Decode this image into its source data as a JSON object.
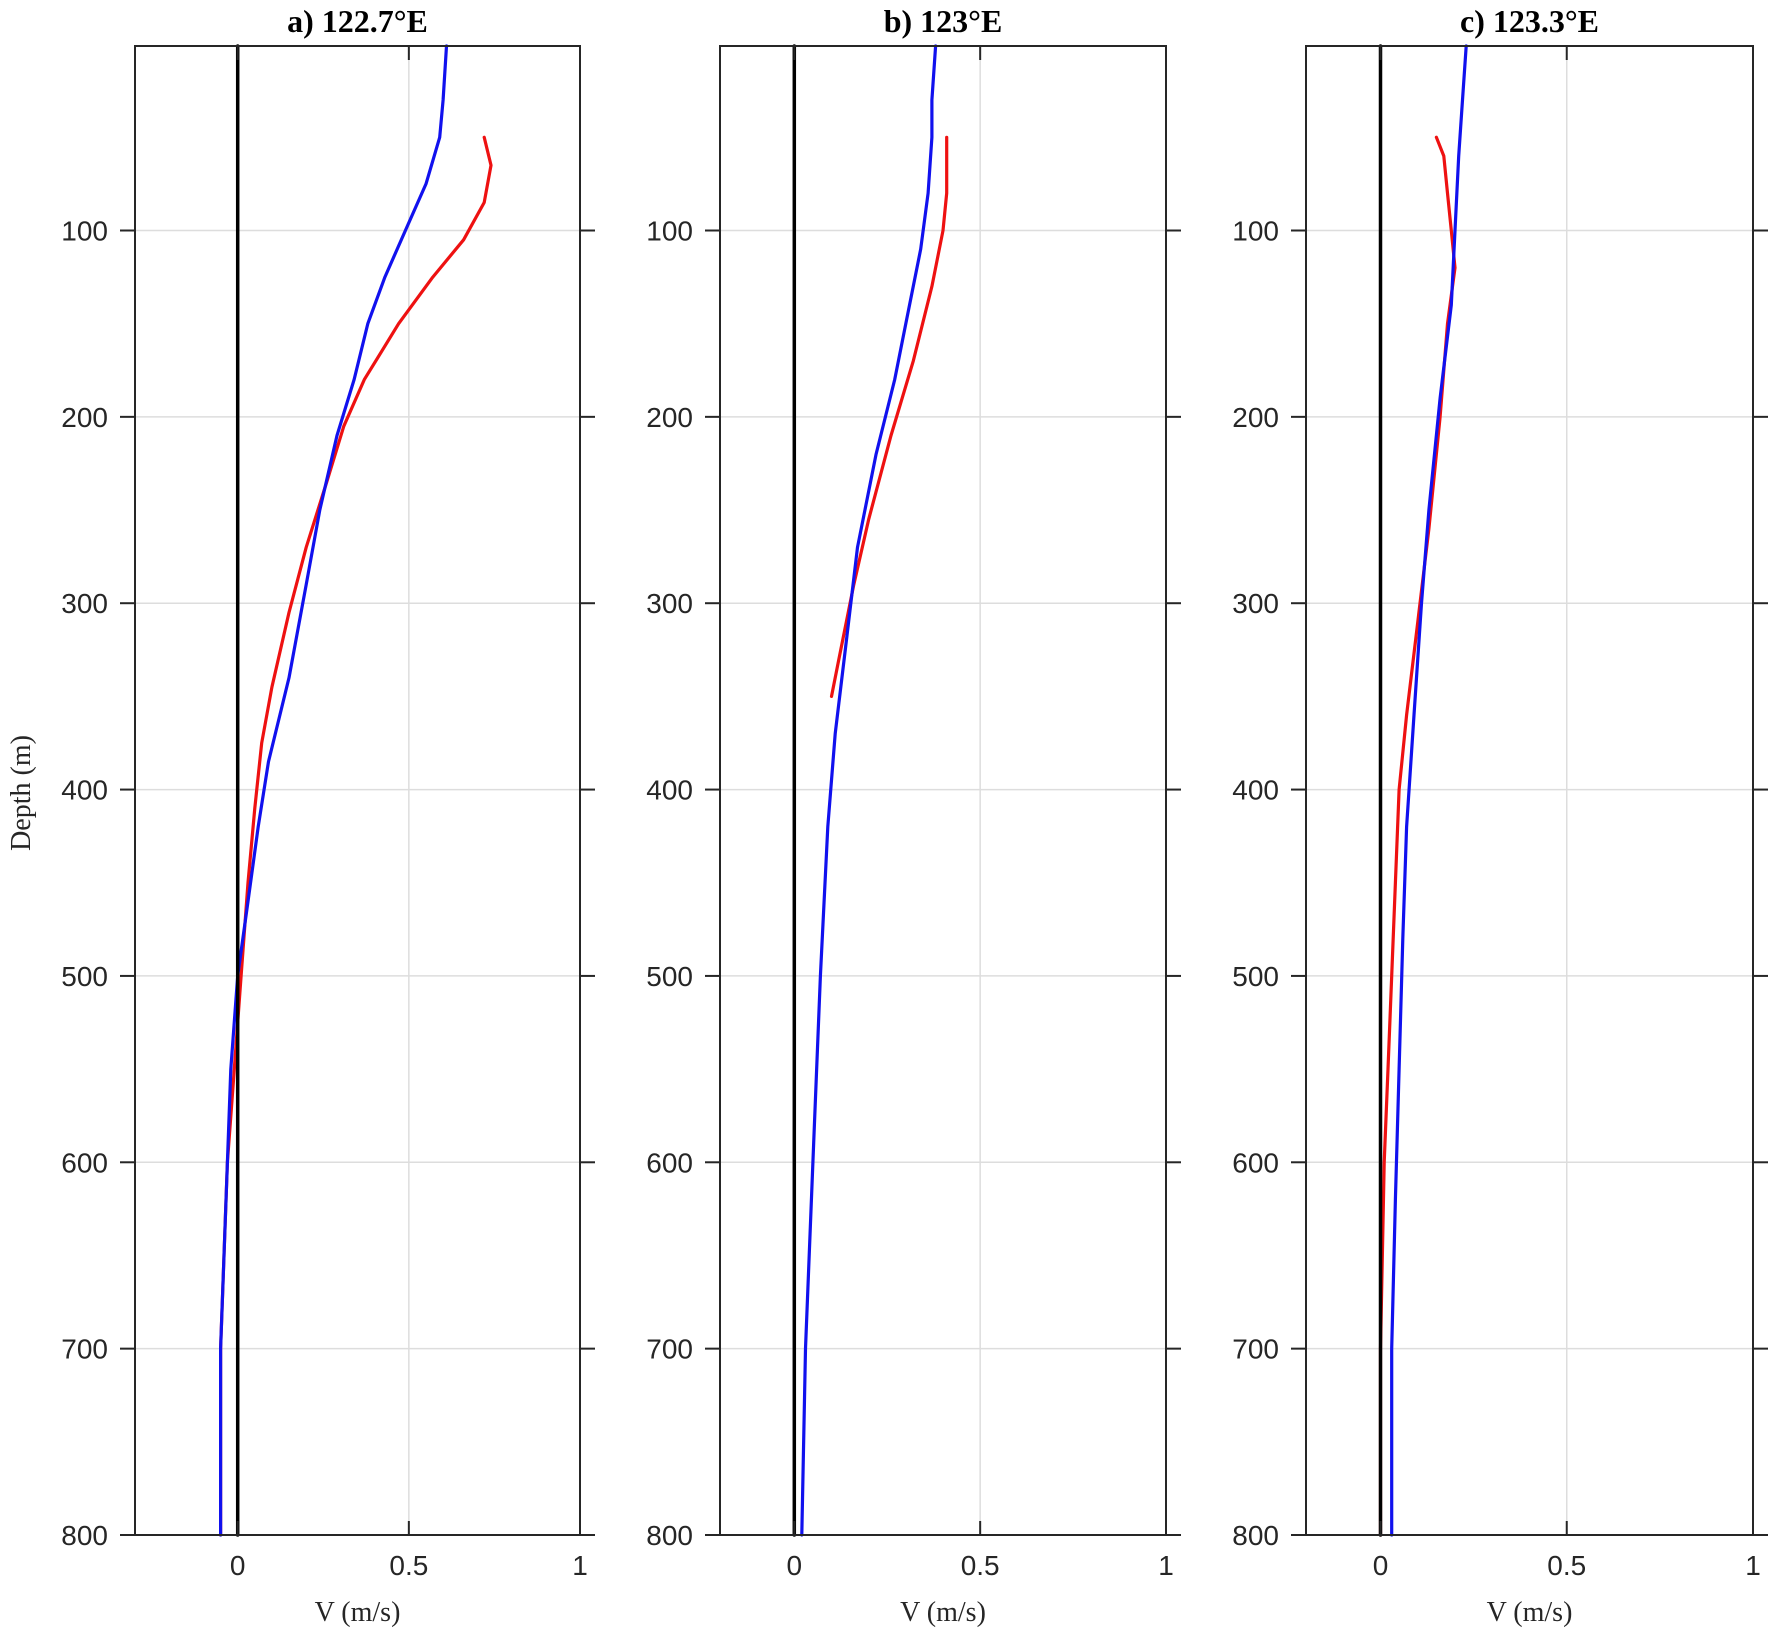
{
  "colors": {
    "series_red": "#ee1111",
    "series_blue": "#1111ee",
    "zero_line": "#000000",
    "grid": "#dddddd",
    "axis": "#262626"
  },
  "shared": {
    "ylabel": "Depth (m)",
    "y_ticks": [
      100,
      200,
      300,
      400,
      500,
      600,
      700,
      800
    ],
    "ylim": [
      800,
      1
    ],
    "y_reversed": true
  },
  "chart_data": [
    {
      "type": "line",
      "title": "a) 122.7°E",
      "xlabel": "V (m/s)",
      "xlim": [
        -0.3,
        1.0
      ],
      "x_ticks": [
        0,
        0.5,
        1
      ],
      "x_tick_labels": [
        "0",
        "0.5",
        "1"
      ],
      "grid": true,
      "series": [
        {
          "color": "#ee1111",
          "points": [
            [
              0.72,
              50
            ],
            [
              0.74,
              65
            ],
            [
              0.72,
              85
            ],
            [
              0.66,
              105
            ],
            [
              0.57,
              125
            ],
            [
              0.47,
              150
            ],
            [
              0.37,
              180
            ],
            [
              0.31,
              205
            ],
            [
              0.26,
              235
            ],
            [
              0.2,
              270
            ],
            [
              0.15,
              305
            ],
            [
              0.1,
              345
            ],
            [
              0.07,
              375
            ],
            [
              0.05,
              410
            ],
            [
              0.03,
              450
            ],
            [
              0.01,
              500
            ],
            [
              -0.01,
              550
            ],
            [
              -0.03,
              600
            ],
            [
              -0.04,
              650
            ],
            [
              -0.05,
              700
            ],
            [
              -0.05,
              800
            ]
          ]
        },
        {
          "color": "#1111ee",
          "points": [
            [
              0.61,
              1
            ],
            [
              0.6,
              30
            ],
            [
              0.59,
              50
            ],
            [
              0.55,
              75
            ],
            [
              0.49,
              100
            ],
            [
              0.43,
              125
            ],
            [
              0.38,
              150
            ],
            [
              0.34,
              180
            ],
            [
              0.29,
              210
            ],
            [
              0.24,
              250
            ],
            [
              0.2,
              290
            ],
            [
              0.15,
              340
            ],
            [
              0.09,
              385
            ],
            [
              0.06,
              420
            ],
            [
              0.03,
              460
            ],
            [
              0.0,
              500
            ],
            [
              -0.02,
              550
            ],
            [
              -0.03,
              600
            ],
            [
              -0.04,
              650
            ],
            [
              -0.05,
              700
            ],
            [
              -0.05,
              800
            ]
          ]
        },
        {
          "color": "#000000",
          "points": [
            [
              0,
              1
            ],
            [
              0,
              800
            ]
          ]
        }
      ]
    },
    {
      "type": "line",
      "title": "b) 123°E",
      "xlabel": "V (m/s)",
      "xlim": [
        -0.2,
        1.0
      ],
      "x_ticks": [
        0,
        0.5,
        1
      ],
      "x_tick_labels": [
        "0",
        "0.5",
        "1"
      ],
      "grid": true,
      "series": [
        {
          "color": "#ee1111",
          "points": [
            [
              0.41,
              50
            ],
            [
              0.41,
              80
            ],
            [
              0.4,
              100
            ],
            [
              0.37,
              130
            ],
            [
              0.32,
              170
            ],
            [
              0.26,
              210
            ],
            [
              0.2,
              255
            ],
            [
              0.16,
              290
            ],
            [
              0.12,
              330
            ],
            [
              0.1,
              350
            ]
          ]
        },
        {
          "color": "#1111ee",
          "points": [
            [
              0.38,
              1
            ],
            [
              0.37,
              30
            ],
            [
              0.37,
              50
            ],
            [
              0.36,
              80
            ],
            [
              0.34,
              110
            ],
            [
              0.3,
              150
            ],
            [
              0.27,
              180
            ],
            [
              0.22,
              220
            ],
            [
              0.17,
              270
            ],
            [
              0.14,
              320
            ],
            [
              0.11,
              370
            ],
            [
              0.09,
              420
            ],
            [
              0.07,
              500
            ],
            [
              0.05,
              600
            ],
            [
              0.03,
              700
            ],
            [
              0.02,
              800
            ]
          ]
        },
        {
          "color": "#000000",
          "points": [
            [
              0,
              1
            ],
            [
              0,
              800
            ]
          ]
        }
      ]
    },
    {
      "type": "line",
      "title": "c) 123.3°E",
      "xlabel": "V (m/s)",
      "xlim": [
        -0.2,
        1.0
      ],
      "x_ticks": [
        0,
        0.5,
        1
      ],
      "x_tick_labels": [
        "0",
        "0.5",
        "1"
      ],
      "grid": true,
      "series": [
        {
          "color": "#ee1111",
          "points": [
            [
              0.15,
              50
            ],
            [
              0.17,
              60
            ],
            [
              0.18,
              80
            ],
            [
              0.19,
              100
            ],
            [
              0.2,
              120
            ],
            [
              0.18,
              150
            ],
            [
              0.16,
              200
            ],
            [
              0.13,
              260
            ],
            [
              0.1,
              310
            ],
            [
              0.07,
              360
            ],
            [
              0.05,
              400
            ],
            [
              0.04,
              450
            ],
            [
              0.03,
              500
            ],
            [
              0.02,
              550
            ],
            [
              0.01,
              600
            ],
            [
              0.0,
              700
            ],
            [
              0.0,
              800
            ]
          ]
        },
        {
          "color": "#1111ee",
          "points": [
            [
              0.23,
              1
            ],
            [
              0.22,
              30
            ],
            [
              0.21,
              60
            ],
            [
              0.2,
              100
            ],
            [
              0.19,
              140
            ],
            [
              0.16,
              190
            ],
            [
              0.13,
              250
            ],
            [
              0.11,
              300
            ],
            [
              0.09,
              360
            ],
            [
              0.07,
              420
            ],
            [
              0.06,
              480
            ],
            [
              0.05,
              550
            ],
            [
              0.04,
              620
            ],
            [
              0.03,
              700
            ],
            [
              0.03,
              800
            ]
          ]
        },
        {
          "color": "#000000",
          "points": [
            [
              0,
              1
            ],
            [
              0,
              800
            ]
          ]
        }
      ]
    }
  ]
}
